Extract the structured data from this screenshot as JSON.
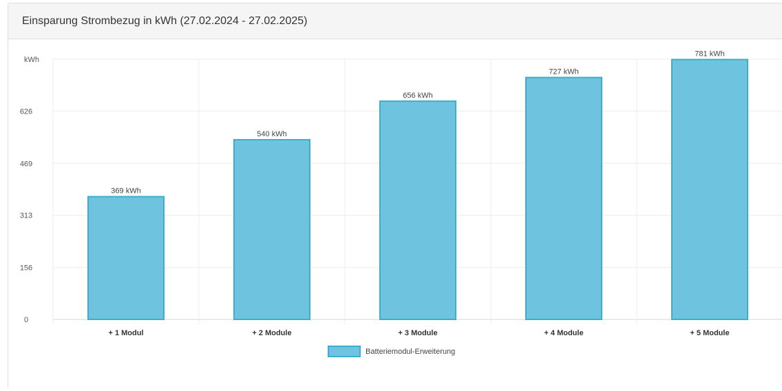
{
  "panel": {
    "title": "Einsparung Strombezug in kWh (27.02.2024 - 27.02.2025)"
  },
  "chart_data": {
    "type": "bar",
    "title": "Einsparung Strombezug in kWh (27.02.2024 - 27.02.2025)",
    "ylabel": "kWh",
    "xlabel": "",
    "categories": [
      "+ 1 Modul",
      "+ 2 Module",
      "+ 3 Module",
      "+ 4 Module",
      "+ 5 Module"
    ],
    "series": [
      {
        "name": "Batteriemodul-Erweiterung",
        "values": [
          369,
          540,
          656,
          727,
          781
        ],
        "labels": [
          "369 kWh",
          "540 kWh",
          "656 kWh",
          "727 kWh",
          "781 kWh"
        ],
        "color": "#6ec3df",
        "border_color": "#3fadd0"
      }
    ],
    "y_ticks": [
      0,
      156,
      313,
      469,
      626
    ],
    "y_top_label": "kWh",
    "ylim": [
      0,
      782
    ],
    "grid": true,
    "legend": "bottom-center"
  }
}
